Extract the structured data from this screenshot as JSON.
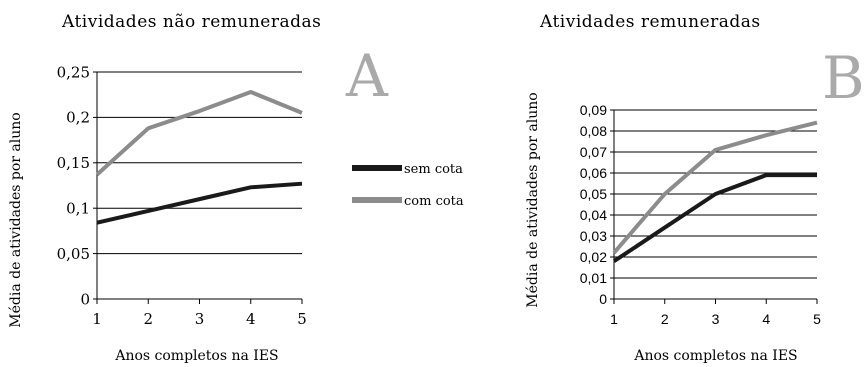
{
  "colors": {
    "sem_cota": "#1a1a1a",
    "com_cota": "#8c8c8c",
    "panel_letter": "#aaaaaa",
    "axis": "#000000"
  },
  "chart_data": [
    {
      "type": "line",
      "panel": "A",
      "title": "Atividades não remuneradas",
      "xlabel": "Anos completos na IES",
      "ylabel": "Média de atividades por aluno",
      "x": [
        1,
        2,
        3,
        4,
        5
      ],
      "ylim": [
        0,
        0.25
      ],
      "yticks": [
        0,
        0.05,
        0.1,
        0.15,
        0.2,
        0.25
      ],
      "ytick_labels": [
        "0",
        "0,05",
        "0,1",
        "0,15",
        "0,2",
        "0,25"
      ],
      "grid": true,
      "legend_position": "right",
      "series": [
        {
          "name": "sem cota",
          "values": [
            0.084,
            0.097,
            0.11,
            0.123,
            0.127
          ]
        },
        {
          "name": "com cota",
          "values": [
            0.137,
            0.188,
            0.207,
            0.228,
            0.205
          ]
        }
      ]
    },
    {
      "type": "line",
      "panel": "B",
      "title": "Atividades remuneradas",
      "xlabel": "Anos completos na IES",
      "ylabel": "Média de atividades por aluno",
      "x": [
        1,
        2,
        3,
        4,
        5
      ],
      "ylim": [
        0,
        0.09
      ],
      "yticks": [
        0,
        0.01,
        0.02,
        0.03,
        0.04,
        0.05,
        0.06,
        0.07,
        0.08,
        0.09
      ],
      "ytick_labels": [
        "0",
        "0,01",
        "0,02",
        "0,03",
        "0,04",
        "0,05",
        "0,06",
        "0,07",
        "0,08",
        "0,09"
      ],
      "grid": true,
      "series": [
        {
          "name": "sem cota",
          "values": [
            0.018,
            0.034,
            0.05,
            0.059,
            0.059
          ]
        },
        {
          "name": "com cota",
          "values": [
            0.022,
            0.05,
            0.071,
            0.078,
            0.084
          ]
        }
      ]
    }
  ]
}
